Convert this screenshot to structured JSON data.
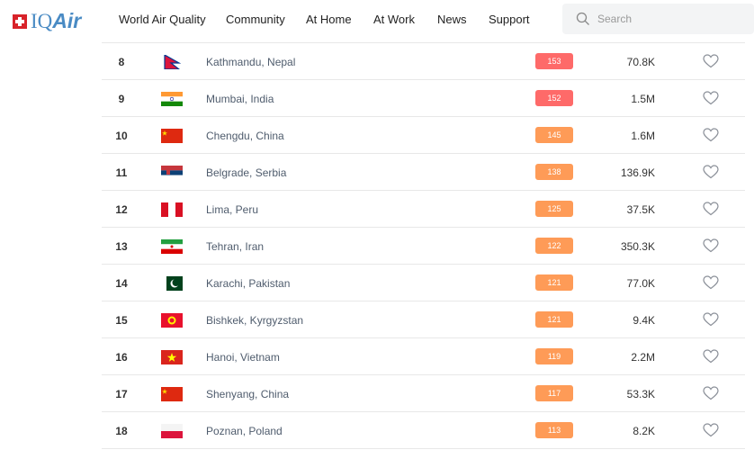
{
  "header": {
    "logo": "IQAir",
    "nav": [
      "World Air Quality",
      "Community",
      "At Home",
      "At Work",
      "News",
      "Support"
    ],
    "search_placeholder": "Search"
  },
  "colors": {
    "unhealthy": "#fe6a69",
    "sensitive": "#fe9b57"
  },
  "rows": [
    {
      "rank": "8",
      "flag": "nepal",
      "city": "Kathmandu, Nepal",
      "aqi": "153",
      "population": "70.8K",
      "level": "unhealthy"
    },
    {
      "rank": "9",
      "flag": "india",
      "city": "Mumbai, India",
      "aqi": "152",
      "population": "1.5M",
      "level": "unhealthy"
    },
    {
      "rank": "10",
      "flag": "china",
      "city": "Chengdu, China",
      "aqi": "145",
      "population": "1.6M",
      "level": "sensitive"
    },
    {
      "rank": "11",
      "flag": "serbia",
      "city": "Belgrade, Serbia",
      "aqi": "138",
      "population": "136.9K",
      "level": "sensitive"
    },
    {
      "rank": "12",
      "flag": "peru",
      "city": "Lima, Peru",
      "aqi": "125",
      "population": "37.5K",
      "level": "sensitive"
    },
    {
      "rank": "13",
      "flag": "iran",
      "city": "Tehran, Iran",
      "aqi": "122",
      "population": "350.3K",
      "level": "sensitive"
    },
    {
      "rank": "14",
      "flag": "pakistan",
      "city": "Karachi, Pakistan",
      "aqi": "121",
      "population": "77.0K",
      "level": "sensitive"
    },
    {
      "rank": "15",
      "flag": "kyrgyzstan",
      "city": "Bishkek, Kyrgyzstan",
      "aqi": "121",
      "population": "9.4K",
      "level": "sensitive"
    },
    {
      "rank": "16",
      "flag": "vietnam",
      "city": "Hanoi, Vietnam",
      "aqi": "119",
      "population": "2.2M",
      "level": "sensitive"
    },
    {
      "rank": "17",
      "flag": "china",
      "city": "Shenyang, China",
      "aqi": "117",
      "population": "53.3K",
      "level": "sensitive"
    },
    {
      "rank": "18",
      "flag": "poland",
      "city": "Poznan, Poland",
      "aqi": "113",
      "population": "8.2K",
      "level": "sensitive"
    }
  ]
}
